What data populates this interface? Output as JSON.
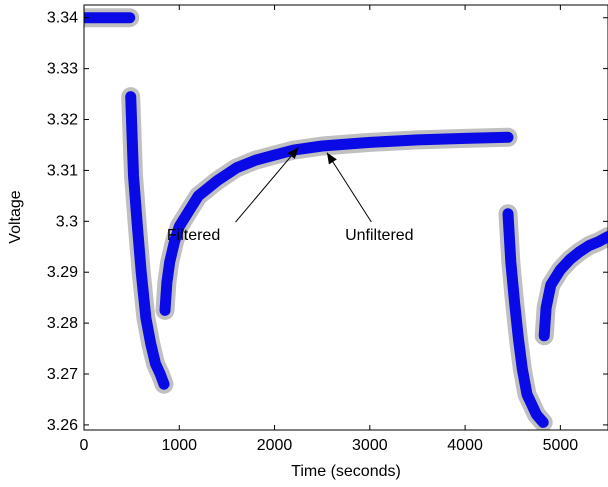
{
  "chart_data": {
    "type": "scatter",
    "title": "",
    "xlabel": "Time (seconds)",
    "ylabel": "Voltage",
    "xlim": [
      0,
      5500
    ],
    "ylim": [
      3.259,
      3.3425
    ],
    "xticks": [
      0,
      1000,
      2000,
      3000,
      4000,
      5000
    ],
    "xtick_labels": [
      "0",
      "1000",
      "2000",
      "3000",
      "4000",
      "5000"
    ],
    "yticks": [
      3.26,
      3.27,
      3.28,
      3.29,
      3.3,
      3.31,
      3.32,
      3.33,
      3.34
    ],
    "ytick_labels": [
      "3.26",
      "3.27",
      "3.28",
      "3.29",
      "3.3",
      "3.31",
      "3.32",
      "3.33",
      "3.34"
    ],
    "grid": false,
    "legend": "none",
    "series": [
      {
        "name": "Unfiltered",
        "color": "#c0c0c0",
        "segments": [
          {
            "x": [
              0,
              100,
              200,
              300,
              400,
              480
            ],
            "y": [
              3.34,
              3.34,
              3.34,
              3.34,
              3.34,
              3.34
            ]
          },
          {
            "x": [
              490,
              520,
              560,
              600,
              650,
              700,
              750,
              800,
              840
            ],
            "y": [
              3.3245,
              3.309,
              3.299,
              3.29,
              3.281,
              3.276,
              3.272,
              3.27,
              3.268
            ]
          },
          {
            "x": [
              850,
              870,
              900,
              950,
              1000,
              1100,
              1200,
              1400,
              1600,
              1800,
              2000,
              2200,
              2500,
              3000,
              3500,
              4000,
              4450
            ],
            "y": [
              3.2825,
              3.288,
              3.292,
              3.296,
              3.299,
              3.302,
              3.305,
              3.308,
              3.3105,
              3.312,
              3.313,
              3.314,
              3.3148,
              3.3155,
              3.316,
              3.3163,
              3.3165
            ]
          },
          {
            "x": [
              4450,
              4480,
              4520,
              4560,
              4600,
              4650,
              4700,
              4750,
              4820
            ],
            "y": [
              3.3015,
              3.292,
              3.284,
              3.277,
              3.271,
              3.266,
              3.264,
              3.262,
              3.2605
            ]
          },
          {
            "x": [
              4830,
              4850,
              4900,
              5000,
              5100,
              5200,
              5300,
              5400,
              5500
            ],
            "y": [
              3.2775,
              3.283,
              3.2875,
              3.2905,
              3.2925,
              3.294,
              3.2952,
              3.296,
              3.297
            ]
          }
        ]
      },
      {
        "name": "Filtered",
        "color": "#0a0ae6",
        "segments": [
          {
            "x": [
              0,
              100,
              200,
              300,
              400,
              480
            ],
            "y": [
              3.34,
              3.34,
              3.34,
              3.34,
              3.34,
              3.34
            ]
          },
          {
            "x": [
              490,
              520,
              560,
              600,
              650,
              700,
              750,
              800,
              840
            ],
            "y": [
              3.3245,
              3.309,
              3.299,
              3.29,
              3.281,
              3.276,
              3.272,
              3.27,
              3.268
            ]
          },
          {
            "x": [
              850,
              870,
              900,
              950,
              1000,
              1100,
              1200,
              1400,
              1600,
              1800,
              2000,
              2200,
              2500,
              3000,
              3500,
              4000,
              4450
            ],
            "y": [
              3.2825,
              3.288,
              3.292,
              3.296,
              3.299,
              3.302,
              3.305,
              3.308,
              3.3105,
              3.312,
              3.313,
              3.314,
              3.3148,
              3.3155,
              3.316,
              3.3163,
              3.3165
            ]
          },
          {
            "x": [
              4450,
              4480,
              4520,
              4560,
              4600,
              4650,
              4700,
              4750,
              4820
            ],
            "y": [
              3.3015,
              3.292,
              3.284,
              3.277,
              3.271,
              3.266,
              3.264,
              3.262,
              3.2605
            ]
          },
          {
            "x": [
              4830,
              4850,
              4900,
              5000,
              5100,
              5200,
              5300,
              5400,
              5500
            ],
            "y": [
              3.2775,
              3.283,
              3.2875,
              3.2905,
              3.2925,
              3.294,
              3.2952,
              3.296,
              3.297
            ]
          }
        ]
      }
    ],
    "annotations": [
      {
        "text": "Filtered",
        "label_x": 1150,
        "label_y": 3.2975,
        "arrow_to_x": 2250,
        "arrow_to_y": 3.3145
      },
      {
        "text": "Unfiltered",
        "label_x": 3100,
        "label_y": 3.2975,
        "arrow_to_x": 2550,
        "arrow_to_y": 3.3135
      }
    ]
  }
}
